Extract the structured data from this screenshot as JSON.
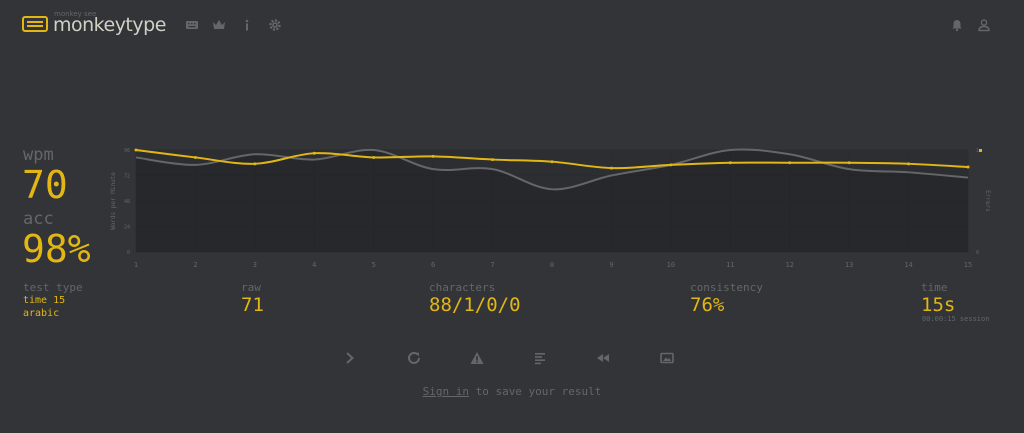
{
  "header": {
    "brand_sub": "monkey see",
    "brand": "monkeytype",
    "nav_icons": [
      "keyboard-icon",
      "crown-icon",
      "info-icon",
      "gear-icon"
    ],
    "right_icons": [
      "bell-icon",
      "user-icon"
    ]
  },
  "stats": {
    "wpm_label": "wpm",
    "wpm": "70",
    "acc_label": "acc",
    "acc": "98%"
  },
  "details": {
    "test_type_label": "test type",
    "test_type_mode": "time 15",
    "test_type_language": "arabic",
    "raw_label": "raw",
    "raw": "71",
    "characters_label": "characters",
    "characters": "88/1/0/0",
    "consistency_label": "consistency",
    "consistency": "76%",
    "time_label": "time",
    "time": "15s",
    "session_note": "00:00:15 session"
  },
  "actions": [
    "next-test-icon",
    "restart-icon",
    "warning-icon",
    "words-history-icon",
    "replay-icon",
    "screenshot-icon"
  ],
  "signin": {
    "link": "Sign in",
    "rest": " to save your result"
  },
  "colors": {
    "background": "#323437",
    "main": "#e2b714",
    "sub": "#646669",
    "text": "#d1d0c5"
  },
  "chart_data": {
    "type": "line",
    "x": [
      1,
      2,
      3,
      4,
      5,
      6,
      7,
      8,
      9,
      10,
      11,
      12,
      13,
      14,
      15
    ],
    "ylabel": "Words per Minute",
    "y2label": "Errors",
    "ylim": [
      0,
      96
    ],
    "yticks": [
      "0",
      "24",
      "48",
      "72",
      "96"
    ],
    "y2ticks": [
      "0",
      "1"
    ],
    "series": [
      {
        "name": "wpm",
        "color": "#e2b714",
        "values": [
          96,
          89,
          83,
          93,
          89,
          90,
          87,
          85,
          79,
          82,
          84,
          84,
          84,
          83,
          80
        ]
      },
      {
        "name": "raw",
        "color": "#646669",
        "values": [
          89,
          82,
          92,
          87,
          96,
          78,
          78,
          59,
          72,
          82,
          96,
          92,
          78,
          75,
          70
        ]
      }
    ],
    "errors": [
      {
        "x": 15,
        "value": 1
      }
    ]
  }
}
